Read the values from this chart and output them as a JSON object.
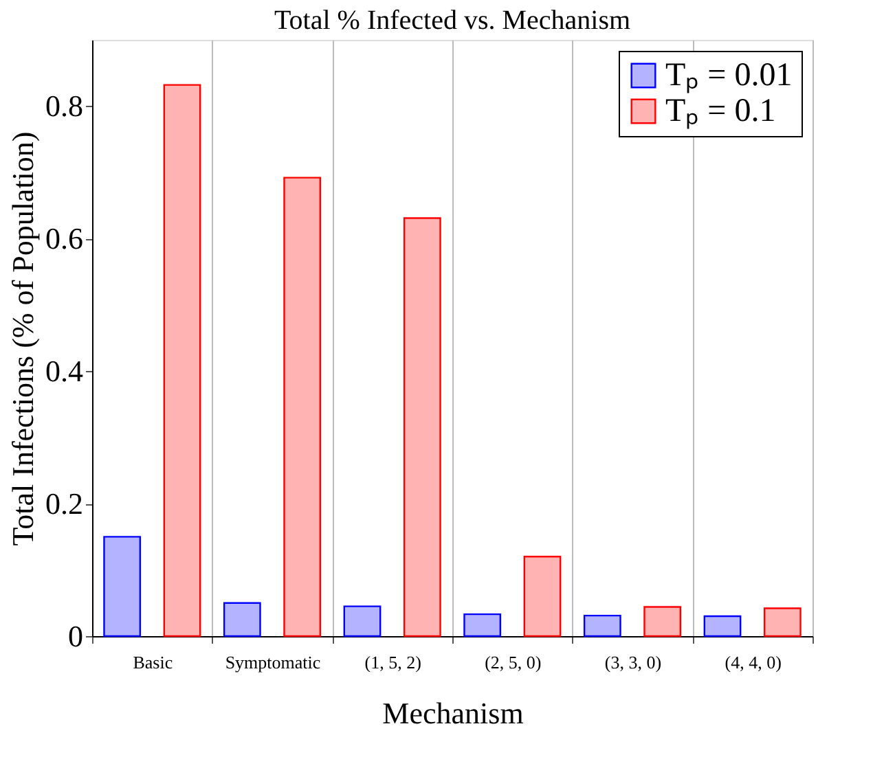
{
  "chart_data": {
    "type": "bar",
    "title": "Total % Infected vs. Mechanism",
    "xlabel": "Mechanism",
    "ylabel": "Total Infections (% of Population)",
    "categories": [
      "Basic",
      "Symptomatic",
      "(1, 5, 2)",
      "(2, 5, 0)",
      "(3, 3, 0)",
      "(4, 4, 0)"
    ],
    "series": [
      {
        "name": "Tₚ = 0.01",
        "color": "#b3b3ff",
        "values": [
          0.15,
          0.05,
          0.045,
          0.033,
          0.031,
          0.03
        ]
      },
      {
        "name": "Tₚ = 0.1",
        "color": "#ffb3b3",
        "values": [
          0.832,
          0.692,
          0.631,
          0.12,
          0.044,
          0.042
        ]
      }
    ],
    "ylim": [
      0,
      0.9
    ],
    "yticks": [
      0,
      0.2,
      0.4,
      0.6,
      0.8
    ],
    "grid": "x",
    "legend": "top right"
  }
}
